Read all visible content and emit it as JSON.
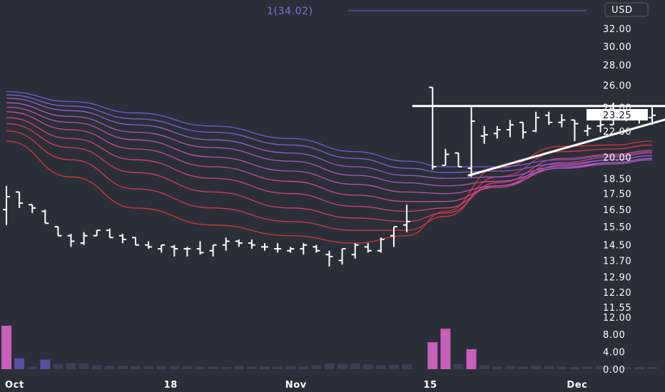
{
  "chart_data": {
    "type": "ohlc",
    "currency": "USD",
    "indicator_label": "1(34.02)",
    "last_price": "23.25",
    "y_ticks": [
      "32.00",
      "30.00",
      "28.00",
      "26.00",
      "24.00",
      "22.00",
      "20.00",
      "18.50",
      "17.50",
      "16.50",
      "15.50",
      "14.50",
      "13.70",
      "12.90",
      "12.20",
      "11.55"
    ],
    "volume_ticks": [
      "12.00",
      "8.00",
      "4.00",
      "0.00"
    ],
    "x_ticks": [
      "Oct",
      "18",
      "Nov",
      "15",
      "Dec"
    ],
    "bars": [
      {
        "o": 16.5,
        "h": 18.0,
        "l": 15.6,
        "c": 17.3
      },
      {
        "o": 17.6,
        "h": 17.6,
        "l": 16.6,
        "c": 16.9
      },
      {
        "o": 16.8,
        "h": 16.8,
        "l": 16.3,
        "c": 16.6
      },
      {
        "o": 16.4,
        "h": 16.5,
        "l": 15.7,
        "c": 15.7
      },
      {
        "o": 15.5,
        "h": 15.5,
        "l": 15.0,
        "c": 15.0
      },
      {
        "o": 15.0,
        "h": 15.1,
        "l": 14.4,
        "c": 14.7
      },
      {
        "o": 14.6,
        "h": 15.2,
        "l": 14.5,
        "c": 15.0
      },
      {
        "o": 15.0,
        "h": 15.1,
        "l": 15.1,
        "c": 15.3
      },
      {
        "o": 15.3,
        "h": 15.4,
        "l": 14.9,
        "c": 14.9
      },
      {
        "o": 15.0,
        "h": 15.1,
        "l": 14.6,
        "c": 14.8
      },
      {
        "o": 14.9,
        "h": 14.9,
        "l": 14.5,
        "c": 14.5
      },
      {
        "o": 14.5,
        "h": 14.7,
        "l": 14.3,
        "c": 14.4
      },
      {
        "o": 14.3,
        "h": 14.5,
        "l": 14.1,
        "c": 14.5
      },
      {
        "o": 14.4,
        "h": 14.5,
        "l": 13.9,
        "c": 14.3
      },
      {
        "o": 14.3,
        "h": 14.4,
        "l": 13.9,
        "c": 14.3
      },
      {
        "o": 14.3,
        "h": 14.7,
        "l": 14.0,
        "c": 14.1
      },
      {
        "o": 14.2,
        "h": 14.5,
        "l": 13.9,
        "c": 14.5
      },
      {
        "o": 14.5,
        "h": 14.9,
        "l": 14.2,
        "c": 14.7
      },
      {
        "o": 14.7,
        "h": 14.8,
        "l": 14.4,
        "c": 14.6
      },
      {
        "o": 14.6,
        "h": 14.8,
        "l": 14.3,
        "c": 14.5
      },
      {
        "o": 14.4,
        "h": 14.6,
        "l": 14.2,
        "c": 14.4
      },
      {
        "o": 14.3,
        "h": 14.6,
        "l": 14.1,
        "c": 14.3
      },
      {
        "o": 14.2,
        "h": 14.4,
        "l": 14.1,
        "c": 14.3
      },
      {
        "o": 14.3,
        "h": 14.6,
        "l": 14.0,
        "c": 14.5
      },
      {
        "o": 14.4,
        "h": 14.5,
        "l": 14.1,
        "c": 14.2
      },
      {
        "o": 14.0,
        "h": 14.2,
        "l": 13.4,
        "c": 13.9
      },
      {
        "o": 13.7,
        "h": 14.3,
        "l": 13.5,
        "c": 14.3
      },
      {
        "o": 14.0,
        "h": 14.6,
        "l": 13.8,
        "c": 14.5
      },
      {
        "o": 14.4,
        "h": 14.6,
        "l": 14.1,
        "c": 14.2
      },
      {
        "o": 14.2,
        "h": 14.9,
        "l": 14.1,
        "c": 14.8
      },
      {
        "o": 15.0,
        "h": 15.5,
        "l": 14.4,
        "c": 15.5
      },
      {
        "o": 15.6,
        "h": 16.8,
        "l": 15.2,
        "c": 15.8
      },
      null,
      {
        "o": 25.8,
        "h": 25.8,
        "l": 19.1,
        "c": 19.3
      },
      {
        "o": 19.4,
        "h": 20.6,
        "l": 19.5,
        "c": 20.2
      },
      {
        "o": 20.3,
        "h": 20.0,
        "l": 19.3,
        "c": 19.3
      },
      {
        "o": 19.2,
        "h": 24.0,
        "l": 18.6,
        "c": 22.8
      },
      {
        "o": 21.6,
        "h": 22.4,
        "l": 21.0,
        "c": 21.7
      },
      {
        "o": 21.8,
        "h": 22.4,
        "l": 21.4,
        "c": 22.1
      },
      {
        "o": 22.1,
        "h": 22.9,
        "l": 21.5,
        "c": 22.5
      },
      {
        "o": 22.7,
        "h": 22.7,
        "l": 21.4,
        "c": 21.9
      },
      {
        "o": 22.0,
        "h": 23.6,
        "l": 21.9,
        "c": 23.1
      },
      {
        "o": 23.3,
        "h": 23.6,
        "l": 22.5,
        "c": 22.7
      },
      {
        "o": 22.7,
        "h": 23.4,
        "l": 22.3,
        "c": 22.9
      },
      {
        "o": 22.9,
        "h": 22.9,
        "l": 21.2,
        "c": 22.6
      },
      {
        "o": 22.0,
        "h": 22.5,
        "l": 21.6,
        "c": 22.2
      },
      {
        "o": 22.4,
        "h": 22.9,
        "l": 21.9,
        "c": 22.5
      },
      {
        "o": 22.5,
        "h": 24.4,
        "l": 22.6,
        "c": 23.1
      },
      {
        "o": 23.7,
        "h": 23.7,
        "l": 22.8,
        "c": 23.3
      },
      {
        "o": 23.4,
        "h": 23.8,
        "l": 22.6,
        "c": 23.2
      },
      {
        "o": 23.1,
        "h": 24.0,
        "l": 22.5,
        "c": 23.3
      }
    ],
    "volume": [
      10.0,
      2.5,
      0.6,
      2.2,
      1.2,
      1.4,
      1.3,
      0.9,
      0.8,
      0.8,
      0.7,
      0.7,
      0.8,
      0.7,
      0.7,
      0.6,
      0.6,
      0.5,
      0.8,
      0.6,
      0.6,
      0.6,
      0.7,
      0.6,
      0.9,
      1.3,
      1.2,
      1.3,
      1.1,
      0.9,
      1.0,
      1.1,
      null,
      6.2,
      9.3,
      1.2,
      4.6,
      0.9,
      0.6,
      0.7,
      0.6,
      0.8,
      0.7,
      0.6,
      0.5,
      0.6,
      0.7,
      0.6,
      0.5,
      0.5,
      0.5
    ],
    "volume_colors": [
      "#c85fb9",
      "#5c4ea0",
      "#3a3f53",
      "#5c4ea0",
      "#3a3f53",
      "#3a3f53",
      "#3a3f53",
      "#3a3f53",
      "#3a3f53",
      "#3a3f53",
      "#3a3f53",
      "#3a3f53",
      "#3a3f53",
      "#3a3f53",
      "#3a3f53",
      "#3a3f53",
      "#3a3f53",
      "#3a3f53",
      "#3a3f53",
      "#3a3f53",
      "#3a3f53",
      "#3a3f53",
      "#3a3f53",
      "#3a3f53",
      "#3a3f53",
      "#3a3f53",
      "#3a3f53",
      "#3a3f53",
      "#3a3f53",
      "#3a3f53",
      "#3a3f53",
      "#3a3f53",
      null,
      "#c85fb9",
      "#c85fb9",
      "#3a3f53",
      "#c85fb9",
      "#3a3f53",
      "#3a3f53",
      "#3a3f53",
      "#3a3f53",
      "#3a3f53",
      "#3a3f53",
      "#3a3f53",
      "#3a3f53",
      "#3a3f53",
      "#3a3f53",
      "#3a3f53",
      "#3a3f53",
      "#3a3f53",
      "#3a3f53"
    ],
    "moving_averages": [
      {
        "color": "#d9362f",
        "values": [
          {
            "i": 0,
            "v": 21.2
          },
          {
            "i": 5,
            "v": 18.6
          },
          {
            "i": 10,
            "v": 16.6
          },
          {
            "i": 16,
            "v": 15.6
          },
          {
            "i": 22,
            "v": 15.0
          },
          {
            "i": 27,
            "v": 14.6
          },
          {
            "i": 31,
            "v": 15.0
          },
          {
            "i": 34,
            "v": 16.4
          },
          {
            "i": 38,
            "v": 19.2
          },
          {
            "i": 43,
            "v": 20.8
          },
          {
            "i": 47,
            "v": 20.9
          },
          {
            "i": 50,
            "v": 21.2
          }
        ]
      },
      {
        "color": "#d8384a",
        "values": [
          {
            "i": 0,
            "v": 22.0
          },
          {
            "i": 5,
            "v": 19.8
          },
          {
            "i": 10,
            "v": 17.8
          },
          {
            "i": 16,
            "v": 16.6
          },
          {
            "i": 22,
            "v": 15.8
          },
          {
            "i": 27,
            "v": 15.3
          },
          {
            "i": 31,
            "v": 15.3
          },
          {
            "i": 34,
            "v": 16.1
          },
          {
            "i": 38,
            "v": 18.6
          },
          {
            "i": 43,
            "v": 20.4
          },
          {
            "i": 47,
            "v": 20.6
          },
          {
            "i": 50,
            "v": 20.9
          }
        ]
      },
      {
        "color": "#d83d66",
        "values": [
          {
            "i": 0,
            "v": 22.6
          },
          {
            "i": 5,
            "v": 20.7
          },
          {
            "i": 10,
            "v": 18.9
          },
          {
            "i": 16,
            "v": 17.6
          },
          {
            "i": 22,
            "v": 16.6
          },
          {
            "i": 27,
            "v": 16.0
          },
          {
            "i": 31,
            "v": 15.8
          },
          {
            "i": 34,
            "v": 16.3
          },
          {
            "i": 38,
            "v": 18.2
          },
          {
            "i": 43,
            "v": 19.9
          },
          {
            "i": 47,
            "v": 20.2
          },
          {
            "i": 50,
            "v": 20.5
          }
        ]
      },
      {
        "color": "#d4437f",
        "values": [
          {
            "i": 0,
            "v": 23.1
          },
          {
            "i": 5,
            "v": 21.4
          },
          {
            "i": 10,
            "v": 19.8
          },
          {
            "i": 16,
            "v": 18.5
          },
          {
            "i": 22,
            "v": 17.5
          },
          {
            "i": 27,
            "v": 16.7
          },
          {
            "i": 31,
            "v": 16.4
          },
          {
            "i": 34,
            "v": 16.6
          },
          {
            "i": 38,
            "v": 18.0
          },
          {
            "i": 43,
            "v": 19.6
          },
          {
            "i": 47,
            "v": 20.0
          },
          {
            "i": 50,
            "v": 20.3
          }
        ]
      },
      {
        "color": "#cd4a96",
        "values": [
          {
            "i": 0,
            "v": 23.6
          },
          {
            "i": 5,
            "v": 22.1
          },
          {
            "i": 10,
            "v": 20.6
          },
          {
            "i": 16,
            "v": 19.3
          },
          {
            "i": 22,
            "v": 18.3
          },
          {
            "i": 27,
            "v": 17.4
          },
          {
            "i": 31,
            "v": 17.0
          },
          {
            "i": 34,
            "v": 17.0
          },
          {
            "i": 38,
            "v": 17.9
          },
          {
            "i": 43,
            "v": 19.4
          },
          {
            "i": 47,
            "v": 19.8
          },
          {
            "i": 50,
            "v": 20.1
          }
        ]
      },
      {
        "color": "#c251ab",
        "values": [
          {
            "i": 0,
            "v": 24.0
          },
          {
            "i": 5,
            "v": 22.7
          },
          {
            "i": 10,
            "v": 21.3
          },
          {
            "i": 16,
            "v": 20.0
          },
          {
            "i": 22,
            "v": 19.0
          },
          {
            "i": 27,
            "v": 18.1
          },
          {
            "i": 31,
            "v": 17.6
          },
          {
            "i": 34,
            "v": 17.5
          },
          {
            "i": 38,
            "v": 18.0
          },
          {
            "i": 43,
            "v": 19.2
          },
          {
            "i": 47,
            "v": 19.6
          },
          {
            "i": 50,
            "v": 19.9
          }
        ]
      },
      {
        "color": "#b357bd",
        "values": [
          {
            "i": 0,
            "v": 24.4
          },
          {
            "i": 5,
            "v": 23.2
          },
          {
            "i": 10,
            "v": 21.9
          },
          {
            "i": 16,
            "v": 20.7
          },
          {
            "i": 22,
            "v": 19.7
          },
          {
            "i": 27,
            "v": 18.7
          },
          {
            "i": 31,
            "v": 18.2
          },
          {
            "i": 34,
            "v": 18.0
          },
          {
            "i": 38,
            "v": 18.3
          },
          {
            "i": 43,
            "v": 19.2
          },
          {
            "i": 47,
            "v": 19.5
          },
          {
            "i": 50,
            "v": 19.8
          }
        ]
      },
      {
        "color": "#9e5bcc",
        "values": [
          {
            "i": 0,
            "v": 24.8
          },
          {
            "i": 5,
            "v": 23.7
          },
          {
            "i": 10,
            "v": 22.5
          },
          {
            "i": 16,
            "v": 21.3
          },
          {
            "i": 22,
            "v": 20.3
          },
          {
            "i": 27,
            "v": 19.3
          },
          {
            "i": 31,
            "v": 18.7
          },
          {
            "i": 34,
            "v": 18.5
          },
          {
            "i": 38,
            "v": 18.6
          },
          {
            "i": 43,
            "v": 19.3
          },
          {
            "i": 47,
            "v": 19.6
          },
          {
            "i": 50,
            "v": 19.9
          }
        ]
      },
      {
        "color": "#865ed6",
        "values": [
          {
            "i": 0,
            "v": 25.1
          },
          {
            "i": 5,
            "v": 24.1
          },
          {
            "i": 10,
            "v": 23.0
          },
          {
            "i": 16,
            "v": 21.9
          },
          {
            "i": 22,
            "v": 20.9
          },
          {
            "i": 27,
            "v": 19.9
          },
          {
            "i": 31,
            "v": 19.2
          },
          {
            "i": 34,
            "v": 18.9
          },
          {
            "i": 38,
            "v": 19.0
          },
          {
            "i": 43,
            "v": 19.5
          },
          {
            "i": 47,
            "v": 19.8
          },
          {
            "i": 50,
            "v": 20.1
          }
        ]
      },
      {
        "color": "#6e5edb",
        "values": [
          {
            "i": 0,
            "v": 25.4
          },
          {
            "i": 5,
            "v": 24.5
          },
          {
            "i": 10,
            "v": 23.5
          },
          {
            "i": 16,
            "v": 22.4
          },
          {
            "i": 22,
            "v": 21.4
          },
          {
            "i": 27,
            "v": 20.4
          },
          {
            "i": 31,
            "v": 19.7
          },
          {
            "i": 34,
            "v": 19.3
          },
          {
            "i": 38,
            "v": 19.3
          },
          {
            "i": 43,
            "v": 19.8
          },
          {
            "i": 47,
            "v": 20.1
          },
          {
            "i": 50,
            "v": 20.4
          }
        ]
      }
    ],
    "trendlines": [
      {
        "name": "resistance",
        "x1": 31.5,
        "y1": 24.1,
        "x2": 52.5,
        "y2": 24.1
      },
      {
        "name": "support",
        "x1": 35.8,
        "y1": 18.7,
        "x2": 52.5,
        "y2": 23.4
      }
    ],
    "colors": {
      "background": "#2a2e39",
      "bars": "#ffffff",
      "indicator_line": "#7b61d1",
      "indicator_text": "#8e6fd9"
    }
  }
}
